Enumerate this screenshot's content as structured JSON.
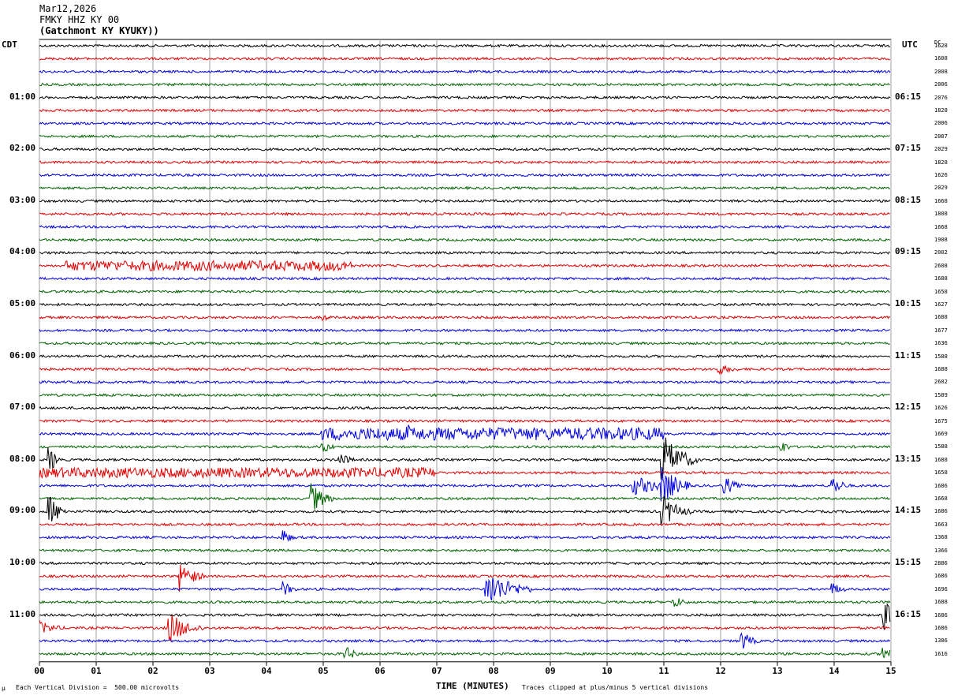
{
  "header": {
    "date": "Mar12,2026",
    "station": "FMKY HHZ KY 00",
    "location": "(Gatchmont KY KYUKY))"
  },
  "axes": {
    "left_tz": "CDT",
    "right_tz": "UTC",
    "dc_label": "DC",
    "xlabel": "TIME (MINUTES)"
  },
  "footer": {
    "scale": "Each Vertical Division =  500.00 microvolts",
    "clip_note": "Traces clipped at plus/minus 5 vertical divisions",
    "corner_mark": "µ"
  },
  "colors": {
    "trace_cycle": [
      "#000000",
      "#e00000",
      "#0000e0",
      "#006400"
    ],
    "grid": "#a0a0a0"
  },
  "chart_data": {
    "type": "line",
    "description_type": "helicorder",
    "x_range_minutes": [
      0,
      15
    ],
    "x_ticks": [
      "00",
      "01",
      "02",
      "03",
      "04",
      "05",
      "06",
      "07",
      "08",
      "09",
      "10",
      "11",
      "12",
      "13",
      "14",
      "15"
    ],
    "lines_per_hour": 4,
    "minutes_per_line": 15,
    "line_count": 48,
    "left_hour_labels": [
      "01:00",
      "02:00",
      "03:00",
      "04:00",
      "05:00",
      "06:00",
      "07:00",
      "08:00",
      "09:00",
      "10:00",
      "11:00"
    ],
    "right_hour_labels": [
      "06:15",
      "07:15",
      "08:15",
      "09:15",
      "10:15",
      "11:15",
      "12:15",
      "13:15",
      "14:15",
      "15:15",
      "16:15"
    ],
    "dc_offsets": [
      "1628",
      "1608",
      "2008",
      "2006",
      "2076",
      "1828",
      "2006",
      "2087",
      "2029",
      "1828",
      "1626",
      "2029",
      "1668",
      "1808",
      "1668",
      "1908",
      "2002",
      "2608",
      "1688",
      "1658",
      "1627",
      "1688",
      "1677",
      "1636",
      "1588",
      "1688",
      "2602",
      "1589",
      "1626",
      "1675",
      "1669",
      "1588",
      "1688",
      "1658",
      "1686",
      "1668",
      "1686",
      "1663",
      "1368",
      "1366",
      "2886",
      "1686",
      "1696",
      "1688",
      "1686",
      "1686",
      "1386",
      "1616"
    ],
    "events": [
      {
        "line": 17,
        "minute": 0.5,
        "amp": 1.6,
        "dur": 5.0,
        "note": "noise burst"
      },
      {
        "line": 17,
        "minute": 2.5,
        "amp": 1.4,
        "dur": 1.5
      },
      {
        "line": 17,
        "minute": 4.0,
        "amp": 1.2,
        "dur": 1.5
      },
      {
        "line": 21,
        "minute": 5.0,
        "amp": 1.5,
        "dur": 0.2
      },
      {
        "line": 25,
        "minute": 12.0,
        "amp": 1.6,
        "dur": 0.5
      },
      {
        "line": 30,
        "minute": 5.0,
        "amp": 2.0,
        "dur": 6.0
      },
      {
        "line": 30,
        "minute": 6.5,
        "amp": 3.0,
        "dur": 0.4
      },
      {
        "line": 31,
        "minute": 5.0,
        "amp": 2.0,
        "dur": 0.3
      },
      {
        "line": 31,
        "minute": 13.1,
        "amp": 2.0,
        "dur": 0.2
      },
      {
        "line": 32,
        "minute": 0.2,
        "amp": 4.0,
        "dur": 0.2
      },
      {
        "line": 32,
        "minute": 5.3,
        "amp": 2.5,
        "dur": 0.3
      },
      {
        "line": 32,
        "minute": 11.0,
        "amp": 8.0,
        "dur": 0.6
      },
      {
        "line": 33,
        "minute": 0.0,
        "amp": 1.6,
        "dur": 7.0
      },
      {
        "line": 34,
        "minute": 10.5,
        "amp": 3.0,
        "dur": 1.0
      },
      {
        "line": 34,
        "minute": 11.0,
        "amp": 6.0,
        "dur": 0.5
      },
      {
        "line": 34,
        "minute": 12.1,
        "amp": 3.0,
        "dur": 0.3
      },
      {
        "line": 34,
        "minute": 14.0,
        "amp": 3.0,
        "dur": 0.3
      },
      {
        "line": 35,
        "minute": 4.8,
        "amp": 5.0,
        "dur": 0.4
      },
      {
        "line": 36,
        "minute": 0.2,
        "amp": 5.0,
        "dur": 0.3
      },
      {
        "line": 36,
        "minute": 11.0,
        "amp": 5.0,
        "dur": 0.5
      },
      {
        "line": 38,
        "minute": 4.3,
        "amp": 3.0,
        "dur": 0.2
      },
      {
        "line": 42,
        "minute": 4.3,
        "amp": 2.5,
        "dur": 0.3
      },
      {
        "line": 42,
        "minute": 7.9,
        "amp": 6.0,
        "dur": 0.8
      },
      {
        "line": 42,
        "minute": 14.0,
        "amp": 2.0,
        "dur": 0.3
      },
      {
        "line": 41,
        "minute": 2.5,
        "amp": 5.0,
        "dur": 0.4
      },
      {
        "line": 43,
        "minute": 11.2,
        "amp": 2.0,
        "dur": 0.3
      },
      {
        "line": 44,
        "minute": 14.9,
        "amp": 5.0,
        "dur": 0.3
      },
      {
        "line": 45,
        "minute": 0.0,
        "amp": 2.5,
        "dur": 0.5
      },
      {
        "line": 45,
        "minute": 2.3,
        "amp": 5.0,
        "dur": 0.6
      },
      {
        "line": 46,
        "minute": 12.4,
        "amp": 3.0,
        "dur": 0.3
      },
      {
        "line": 47,
        "minute": 5.4,
        "amp": 2.5,
        "dur": 0.3
      },
      {
        "line": 47,
        "minute": 14.9,
        "amp": 3.0,
        "dur": 0.3
      }
    ]
  }
}
